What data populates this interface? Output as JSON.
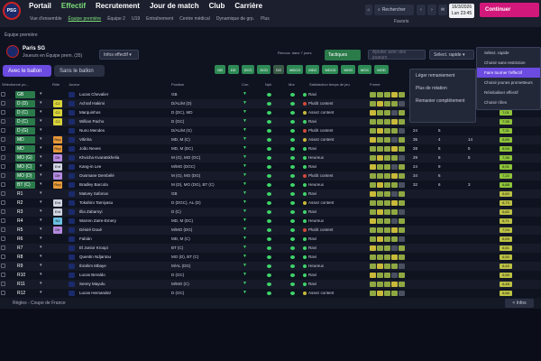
{
  "nav": {
    "logo": "PSG",
    "main": [
      "Portail",
      "Effectif",
      "Recrutement",
      "Jour de match",
      "Club",
      "Carrière"
    ],
    "sub": [
      "Vue d'ensemble",
      "Équipe première",
      "Équipe 2",
      "U19",
      "Entraînement",
      "Centre médical",
      "Dynamique de grp.",
      "Plus"
    ],
    "search": "Rechercher",
    "date_line1": "16/3/2026",
    "date_line2": "Lun 23:45",
    "continue": "Continuer",
    "misc": "Favoris"
  },
  "breadcrumb": "Équipe première",
  "club": {
    "name": "Paris SG",
    "sub": "Joueurs en Équipe prem. (35)"
  },
  "view_select": "Infos effectif",
  "renewal": "Renouv. dans 7 jours",
  "tactics": "Tactiques",
  "search_players_placeholder": "Ajouter avec des joueurs",
  "quick_select": "Sélect. rapide",
  "ball": {
    "on": "Avec le ballon",
    "off": "Sans le ballon"
  },
  "chips": [
    "GB",
    "DD",
    "DCG",
    "DCD",
    "DG",
    "MDCG",
    "MDC",
    "MDCD",
    "MOG",
    "MOC",
    "MOD"
  ],
  "headers": [
    "Sélectionné po...",
    "Rôle",
    "Joueur",
    "Position",
    "Con.",
    "Nph",
    "Mor",
    "Satisfaction temps de jeu",
    "Forme",
    "Tit.",
    "Buts",
    "Pd",
    "Note"
  ],
  "rotation_menu": [
    "Léger remaniement",
    "Plus de rotation",
    "Remanier complètement"
  ],
  "quick_menu": [
    "Sélect. rapide",
    "Choisir sans restriction",
    "Faire tourner l'effectif",
    "Choisir jeunes prometteurs",
    "Réinitialiser effectif",
    "Choisir rôles"
  ],
  "rows": [
    {
      "pos": "GB",
      "role": "",
      "name": "Lucas Chevalier",
      "ppos": "GB",
      "stat": "Ravi",
      "n1": "",
      "n2": "",
      "n3": "",
      "rating": "6,60",
      "sc": "#3fd46a"
    },
    {
      "pos": "D (D)",
      "role": "CJ",
      "name": "Achraf Hakimi",
      "ppos": "D/AL/M (D)",
      "stat": "Plutôt content",
      "n1": "34",
      "n2": "2",
      "n3": "12",
      "rating": "7,36",
      "sc": "#d04a3a"
    },
    {
      "pos": "D (C)",
      "role": "CJ",
      "name": "Marquinhos",
      "ppos": "D (DC), MD",
      "stat": "Assez content",
      "n1": "21",
      "n2": "2",
      "n3": "2",
      "rating": "7,01",
      "sc": "#c9b93a"
    },
    {
      "pos": "D (C)",
      "role": "CJ",
      "name": "Willian Pacho",
      "ppos": "D (GC)",
      "stat": "Ravi",
      "n1": "28",
      "n2": "1",
      "n3": "2",
      "rating": "7,35",
      "sc": "#3fd46a"
    },
    {
      "pos": "D (G)",
      "role": "",
      "name": "Nuno Mendes",
      "ppos": "D/AL/M (G)",
      "stat": "Plutôt content",
      "n1": "24",
      "n2": "5",
      "n3": "",
      "rating": "7,31",
      "sc": "#d04a3a"
    },
    {
      "pos": "MD",
      "role": "Rep",
      "name": "Vitinha",
      "ppos": "MD, M (C)",
      "stat": "Assez content",
      "n1": "35",
      "n2": "4",
      "n3": "14",
      "rating": "6,89",
      "sc": "#c9b93a"
    },
    {
      "pos": "MD",
      "role": "Rep",
      "name": "João Neves",
      "ppos": "MD, M (DC)",
      "stat": "Ravi",
      "n1": "28",
      "n2": "5",
      "n3": "5",
      "rating": "6,94",
      "sc": "#3fd46a"
    },
    {
      "pos": "MO (G)",
      "role": "Dfr",
      "name": "Khvicha Kvaratskhelia",
      "ppos": "M (G), MO (GC)",
      "stat": "Heureux",
      "n1": "29",
      "n2": "8",
      "n3": "5",
      "rating": "7,36",
      "sc": "#3fd46a"
    },
    {
      "pos": "MO (C)",
      "role": "Ent",
      "name": "Kang-in Lee",
      "ppos": "M/MO (DGC)",
      "stat": "Ravi",
      "n1": "24",
      "n2": "9",
      "n3": "",
      "rating": "6,91",
      "sc": "#3fd46a"
    },
    {
      "pos": "MO (D)",
      "role": "Dfr",
      "name": "Ousmane Dembélé",
      "ppos": "M (G), MO (DG)",
      "stat": "Plutôt content",
      "n1": "34",
      "n2": "6",
      "n3": "",
      "rating": "7,22",
      "sc": "#d04a3a"
    },
    {
      "pos": "BT (C)",
      "role": "Rep",
      "name": "Bradley Barcola",
      "ppos": "M (D), MO (DG), BT (C)",
      "stat": "Heureux",
      "n1": "32",
      "n2": "6",
      "n3": "3",
      "rating": "6,88",
      "sc": "#3fd46a"
    },
    {
      "pos": "R1",
      "role": "",
      "name": "Matvey Safonov",
      "ppos": "GB",
      "stat": "Ravi",
      "n1": "",
      "n2": "",
      "n3": "",
      "rating": "6,60",
      "sc": "#3fd46a"
    },
    {
      "pos": "R2",
      "role": "Ent",
      "name": "Tokahiro Tamiyasu",
      "ppos": "D (DGC), AL (D)",
      "stat": "Assez content",
      "n1": "",
      "n2": "",
      "n3": "",
      "rating": "6,73",
      "sc": "#c9b93a"
    },
    {
      "pos": "R3",
      "role": "Ent",
      "name": "Illia Zabarnyi",
      "ppos": "D (C)",
      "stat": "Ravi",
      "n1": "",
      "n2": "",
      "n3": "",
      "rating": "6,82",
      "sc": "#3fd46a"
    },
    {
      "pos": "R4",
      "role": "NJ",
      "name": "Warren Zaïre-Emery",
      "ppos": "MD, M (DC)",
      "stat": "Heureux",
      "n1": "",
      "n2": "",
      "n3": "",
      "rating": "6,71",
      "sc": "#3fd46a"
    },
    {
      "pos": "R5",
      "role": "Dfr",
      "name": "Désiré Doué",
      "ppos": "M/MO (DG)",
      "stat": "Plutôt content",
      "n1": "",
      "n2": "",
      "n3": "",
      "rating": "7,04",
      "sc": "#d04a3a"
    },
    {
      "pos": "R6",
      "role": "",
      "name": "Fabián",
      "ppos": "MD, M (C)",
      "stat": "Ravi",
      "n1": "",
      "n2": "",
      "n3": "",
      "rating": "6,69",
      "sc": "#3fd46a"
    },
    {
      "pos": "R7",
      "role": "",
      "name": "El Junior Kroupi",
      "ppos": "BT (C)",
      "stat": "Ravi",
      "n1": "",
      "n2": "",
      "n3": "",
      "rating": "6,61",
      "sc": "#3fd46a"
    },
    {
      "pos": "R8",
      "role": "",
      "name": "Quentin Ndjantou",
      "ppos": "MO (D), BT (C)",
      "stat": "Ravi",
      "n1": "",
      "n2": "",
      "n3": "",
      "rating": "6,50",
      "sc": "#3fd46a"
    },
    {
      "pos": "R9",
      "role": "",
      "name": "Ibrahim Mbaye",
      "ppos": "M/AL (DG)",
      "stat": "Heureux",
      "n1": "",
      "n2": "",
      "n3": "",
      "rating": "6,42",
      "sc": "#3fd46a"
    },
    {
      "pos": "R10",
      "role": "",
      "name": "Lucas Beraldo",
      "ppos": "D (GC)",
      "stat": "Ravi",
      "n1": "",
      "n2": "",
      "n3": "",
      "rating": "6,55",
      "sc": "#3fd46a"
    },
    {
      "pos": "R11",
      "role": "",
      "name": "Senny Mayulu",
      "ppos": "M/MO (C)",
      "stat": "Ravi",
      "n1": "",
      "n2": "",
      "n3": "",
      "rating": "6,48",
      "sc": "#3fd46a"
    },
    {
      "pos": "R12",
      "role": "",
      "name": "Lucas Hernandez",
      "ppos": "D (GC)",
      "stat": "Assez content",
      "n1": "",
      "n2": "",
      "n3": "",
      "rating": "6,66",
      "sc": "#c9b93a"
    }
  ],
  "footer": {
    "text": "Règles - Coupe de France",
    "btn": "< Infos"
  }
}
